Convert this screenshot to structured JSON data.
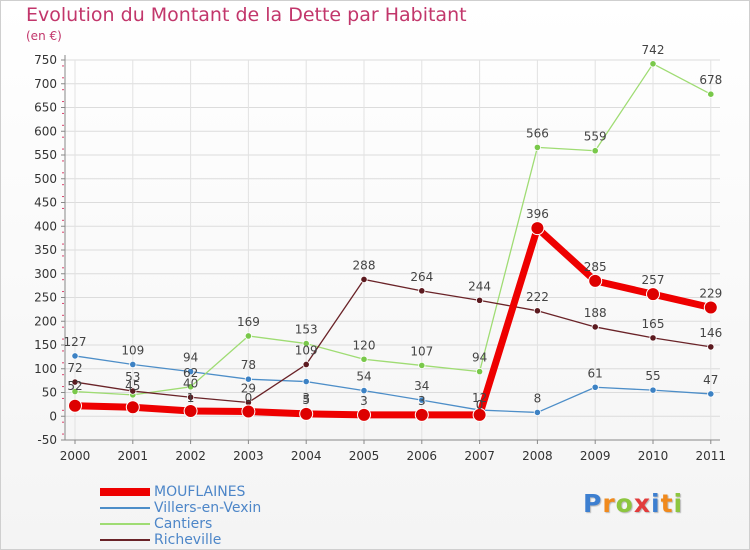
{
  "title": "Evolution du Montant de la Dette par Habitant",
  "unit": "(en €)",
  "logo": {
    "letters": [
      {
        "ch": "P",
        "color": "#3d7fd0"
      },
      {
        "ch": "r",
        "color": "#f08a1d"
      },
      {
        "ch": "o",
        "color": "#8dc63f"
      },
      {
        "ch": "x",
        "color": "#e23b3b"
      },
      {
        "ch": "i",
        "color": "#3d7fd0"
      },
      {
        "ch": "t",
        "color": "#f08a1d"
      },
      {
        "ch": "i",
        "color": "#8dc63f"
      }
    ]
  },
  "chart_data": {
    "type": "line",
    "title": "Evolution du Montant de la Dette par Habitant",
    "ylabel": "(en €)",
    "xlabel": "",
    "x": [
      "2000",
      "2001",
      "2002",
      "2003",
      "2004",
      "2005",
      "2006",
      "2007",
      "2008",
      "2009",
      "2010",
      "2011"
    ],
    "ylim": [
      -50,
      750
    ],
    "yticks": [
      -50,
      0,
      50,
      100,
      150,
      200,
      250,
      300,
      350,
      400,
      450,
      500,
      550,
      600,
      650,
      700,
      750
    ],
    "ytick_labels": [
      "-50",
      "0",
      "50",
      "100",
      "150",
      "200",
      "250",
      "300",
      "350",
      "400",
      "450",
      "500",
      "550",
      "600",
      "650",
      "700",
      "750"
    ],
    "grid": true,
    "legend": "bottom-left",
    "series": [
      {
        "name": "Villers-en-Vexin",
        "color": "#4d8ec8",
        "marker": "#3d82c4",
        "width": 1.3,
        "values": [
          127,
          109,
          94,
          78,
          73,
          54,
          34,
          13,
          8,
          61,
          55,
          47
        ],
        "labels": [
          "127",
          "109",
          "94",
          "78",
          "",
          "54",
          "34",
          "",
          "8",
          "61",
          "55",
          "47"
        ]
      },
      {
        "name": "Cantiers",
        "color": "#9fdc73",
        "marker": "#79c84a",
        "width": 1.3,
        "values": [
          52,
          45,
          62,
          169,
          153,
          120,
          107,
          94,
          566,
          559,
          742,
          678
        ],
        "labels": [
          "",
          "",
          "62",
          "169",
          "153",
          "120",
          "107",
          "94",
          "566",
          "559",
          "742",
          "678"
        ]
      },
      {
        "name": "Richeville",
        "color": "#6a2328",
        "marker": "#5c1a1f",
        "width": 1.3,
        "values": [
          72,
          53,
          40,
          29,
          109,
          288,
          264,
          244,
          222,
          188,
          165,
          146
        ],
        "labels": [
          "72",
          "53",
          "40",
          "29",
          "109",
          "288",
          "264",
          "244",
          "222",
          "188",
          "165",
          "146"
        ]
      },
      {
        "name": "MOUFLAINES",
        "color": "#ee0000",
        "marker": "#dd0000",
        "width": 7,
        "values": [
          22,
          19,
          11,
          10,
          5,
          3,
          3,
          3,
          396,
          285,
          257,
          229
        ],
        "labels": [
          "",
          "",
          "",
          "",
          "5",
          "3",
          "3",
          "",
          "396",
          "285",
          "257",
          "229"
        ]
      }
    ],
    "extra_point_labels": [
      {
        "x": "2000",
        "text": "52"
      },
      {
        "x": "2001",
        "text": "45"
      },
      {
        "x": "2002",
        "text": "1"
      },
      {
        "x": "2003",
        "text": "0"
      },
      {
        "x": "2004",
        "text": "3"
      },
      {
        "x": "2007",
        "text": "12"
      },
      {
        "x": "2007",
        "text": "0"
      }
    ],
    "legend_order": [
      "MOUFLAINES",
      "Villers-en-Vexin",
      "Cantiers",
      "Richeville"
    ]
  }
}
